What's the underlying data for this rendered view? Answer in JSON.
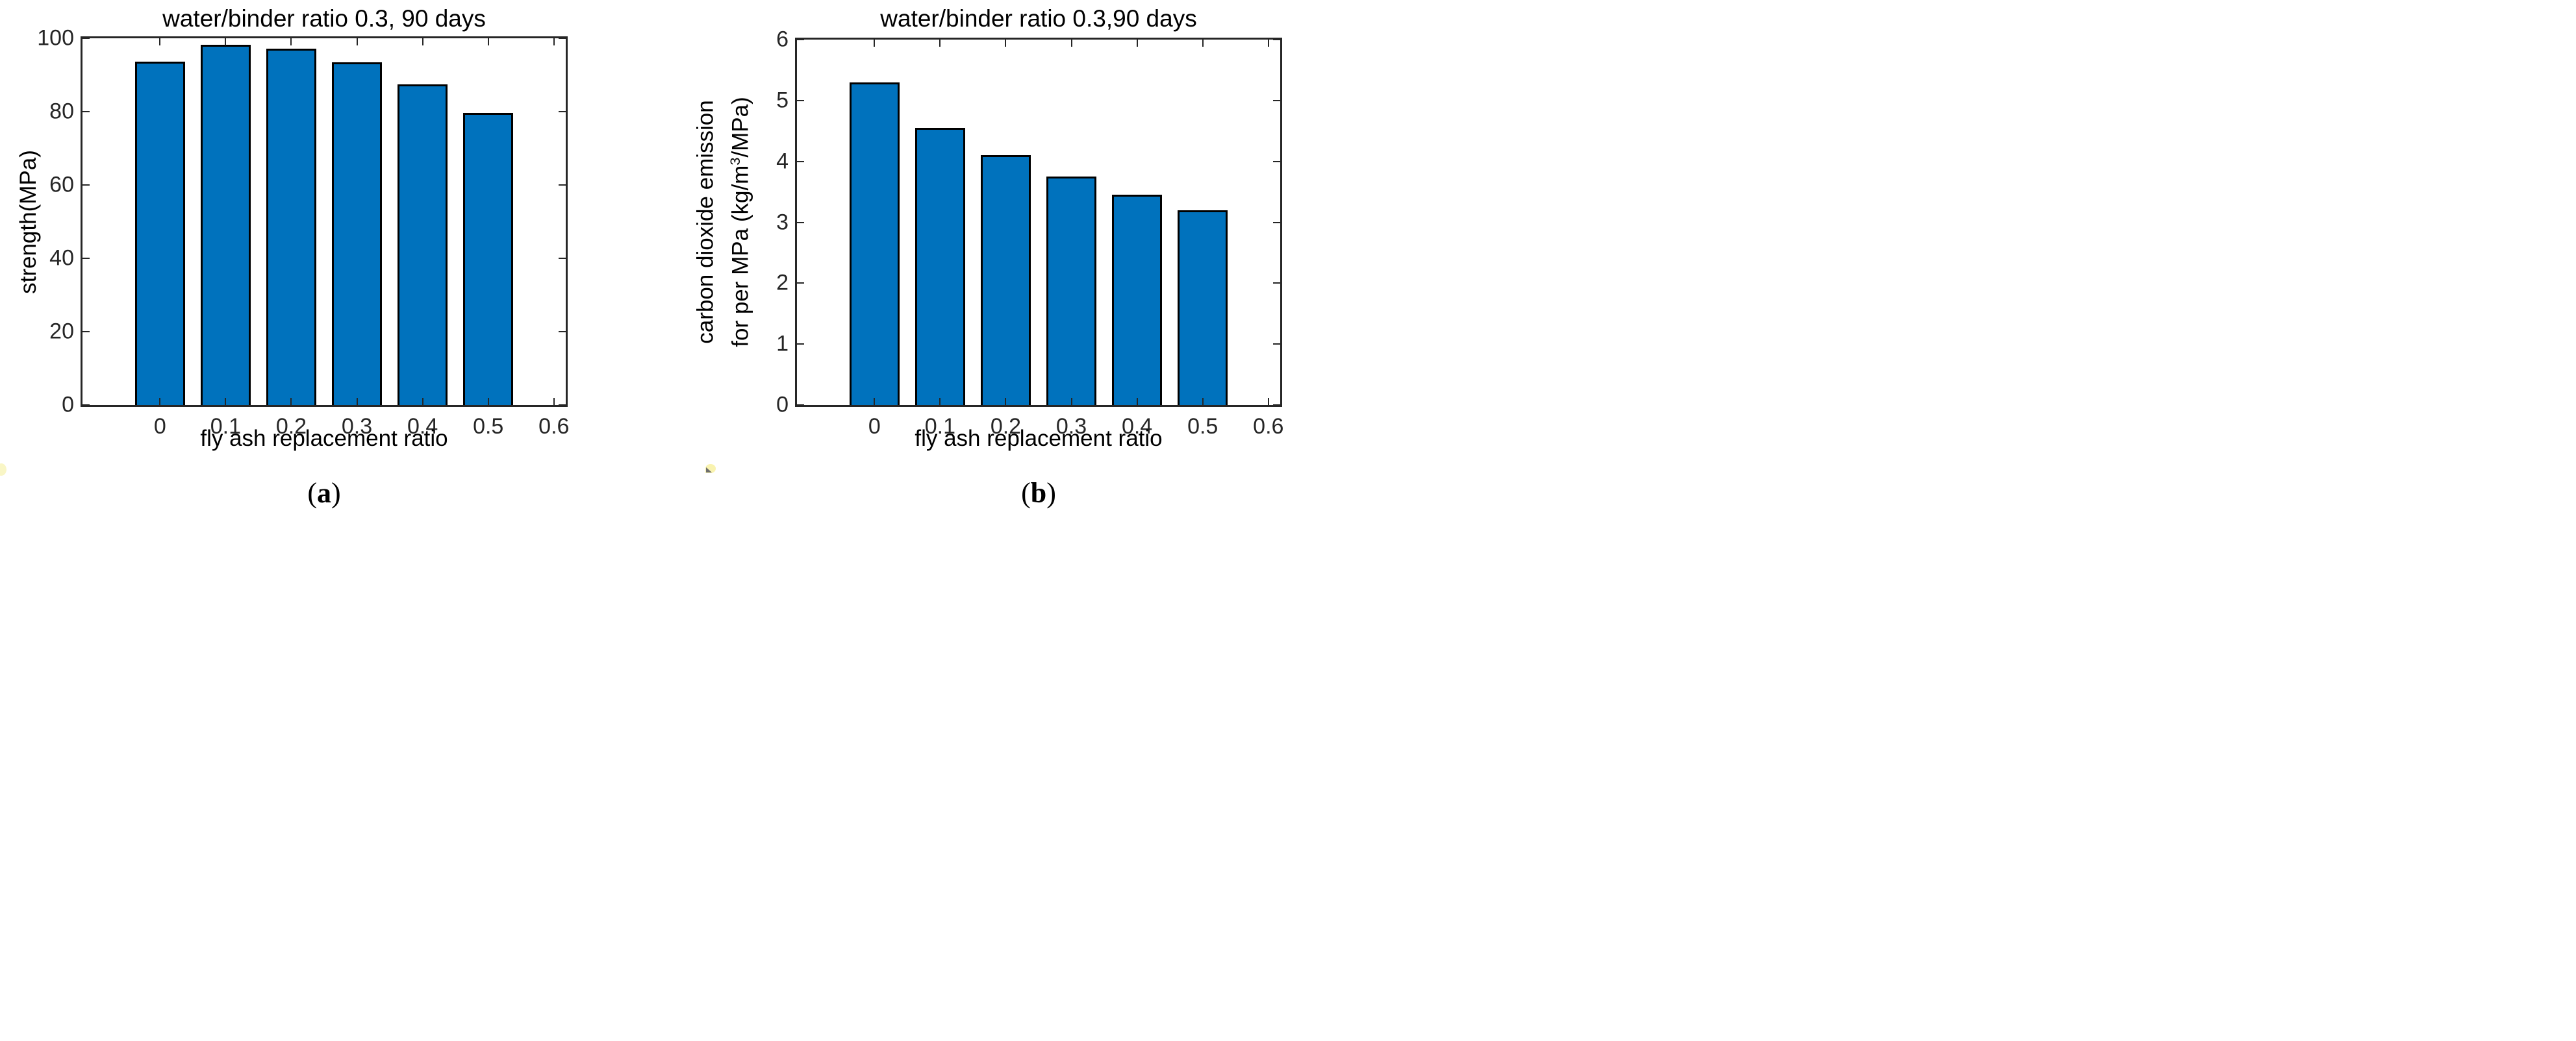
{
  "figure": {
    "background": "#ffffff",
    "axis_color": "#262626",
    "text_color": "#000000"
  },
  "chart_data": [
    {
      "id": "a",
      "type": "bar",
      "title": "water/binder ratio 0.3, 90 days",
      "xlabel": "fly ash replacement ratio",
      "ylabel": "strength(MPa)",
      "categories": [
        0,
        0.1,
        0.2,
        0.3,
        0.4,
        0.5
      ],
      "values": [
        93.7,
        98.3,
        97.2,
        93.4,
        87.5,
        79.6
      ],
      "xlim": [
        -0.118,
        0.618
      ],
      "ylim": [
        0,
        100
      ],
      "xticks": [
        0,
        0.1,
        0.2,
        0.3,
        0.4,
        0.5,
        0.6
      ],
      "xtick_labels": [
        "0",
        "0.1",
        "0.2",
        "0.3",
        "0.4",
        "0.5",
        "0.6"
      ],
      "yticks": [
        0,
        20,
        40,
        60,
        80,
        100
      ],
      "ytick_labels": [
        "0",
        "20",
        "40",
        "60",
        "80",
        "100"
      ],
      "bar_width": 0.076,
      "bar_color": "#0072BD",
      "bar_edge_color": "#000000",
      "grid": false,
      "legend": "none",
      "caption_open": "(",
      "caption_letter": "a",
      "caption_close": ")"
    },
    {
      "id": "b",
      "type": "bar",
      "title": "water/binder ratio 0.3,90 days",
      "xlabel": "fly ash replacement ratio",
      "ylabel": "carbon dioxide emission for per MPa (kg/m³/MPa)",
      "ylabel_line1": "carbon dioxide emission",
      "ylabel_line2_prefix": "for per MPa (kg/m",
      "ylabel_line2_sup": "3",
      "ylabel_line2_suffix": "/MPa)",
      "categories": [
        0,
        0.1,
        0.2,
        0.3,
        0.4,
        0.5
      ],
      "values": [
        5.3,
        4.55,
        4.1,
        3.75,
        3.45,
        3.2
      ],
      "xlim": [
        -0.118,
        0.618
      ],
      "ylim": [
        0,
        6
      ],
      "xticks": [
        0,
        0.1,
        0.2,
        0.3,
        0.4,
        0.5,
        0.6
      ],
      "xtick_labels": [
        "0",
        "0.1",
        "0.2",
        "0.3",
        "0.4",
        "0.5",
        "0.6"
      ],
      "yticks": [
        0,
        1,
        2,
        3,
        4,
        5,
        6
      ],
      "ytick_labels": [
        "0",
        "1",
        "2",
        "3",
        "4",
        "5",
        "6"
      ],
      "bar_width": 0.076,
      "bar_color": "#0072BD",
      "bar_edge_color": "#000000",
      "grid": false,
      "legend": "none",
      "caption_open": "(",
      "caption_letter": "b",
      "caption_close": ")"
    }
  ]
}
